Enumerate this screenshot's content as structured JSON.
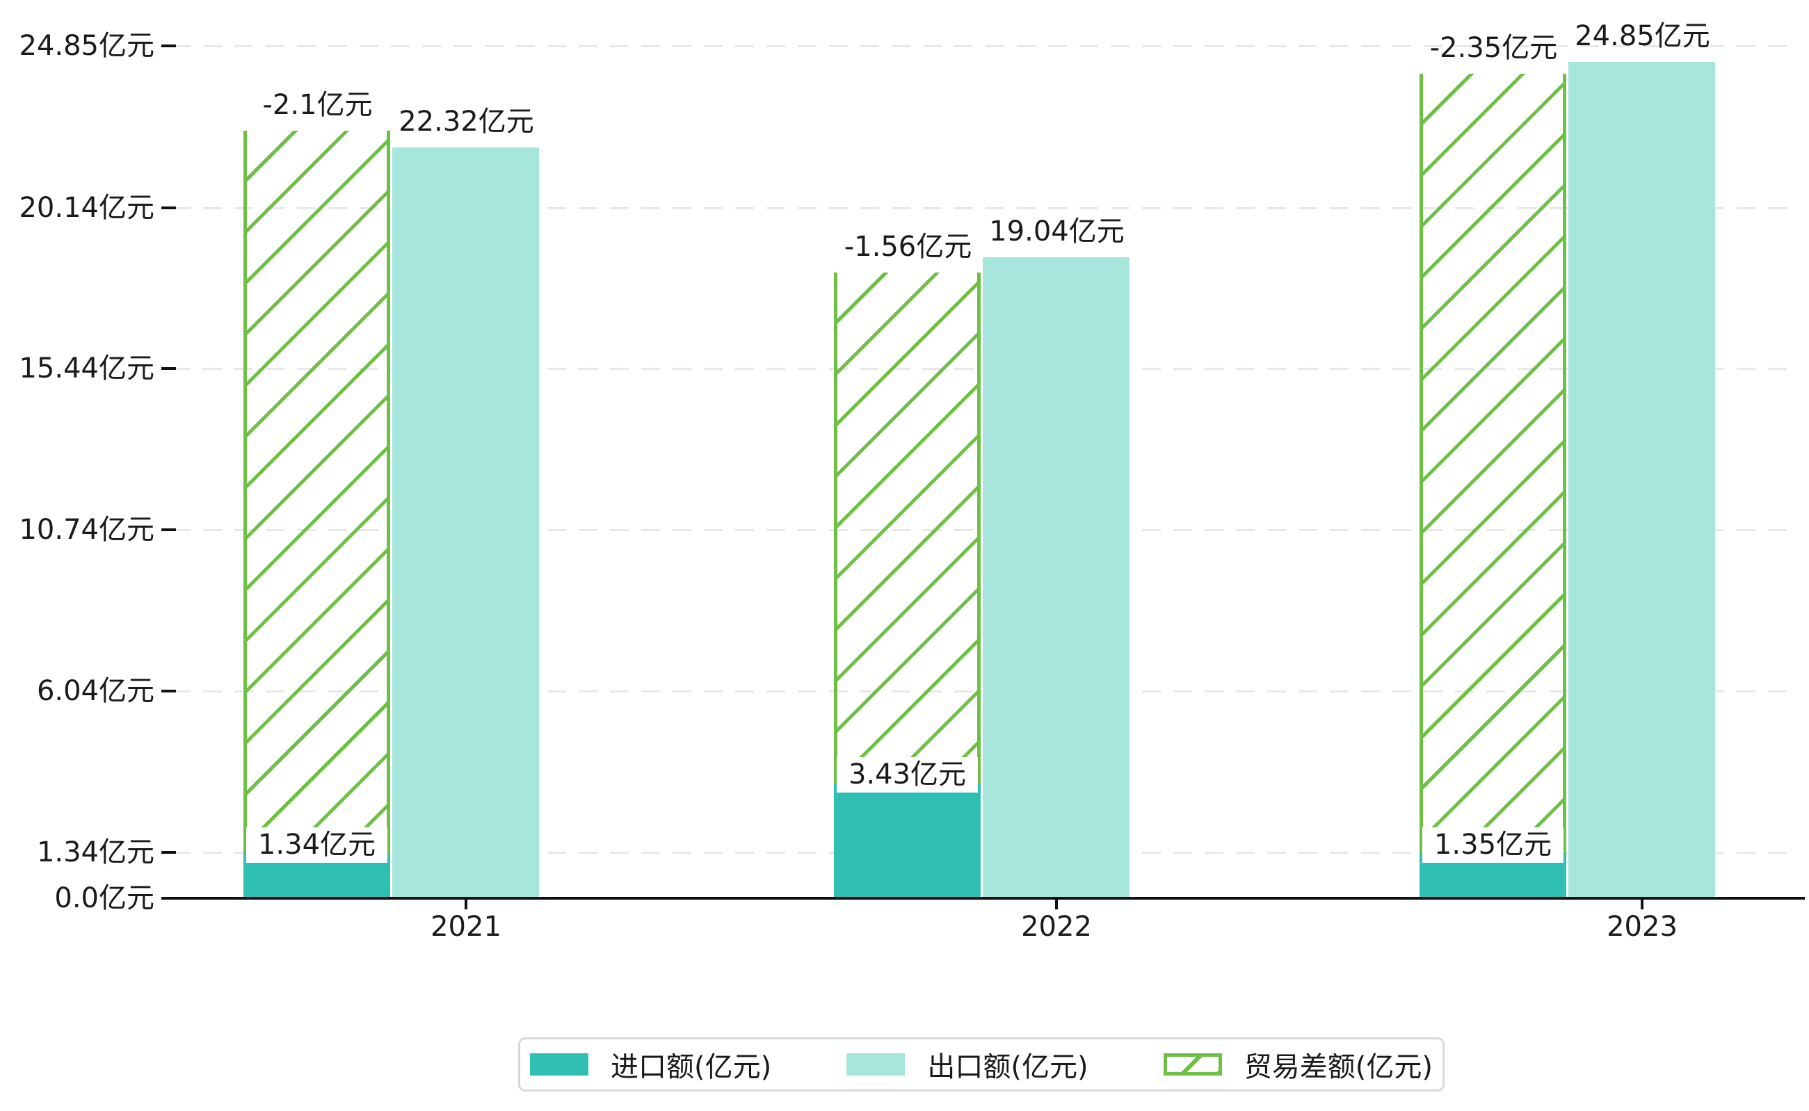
{
  "chart_data": {
    "type": "bar",
    "categories": [
      "2021",
      "2022",
      "2023"
    ],
    "unit": "亿元",
    "series": [
      {
        "name": "进口额(亿元)",
        "role": "import",
        "color": "#30BFB3",
        "values": [
          1.34,
          3.43,
          1.35
        ],
        "data_labels": [
          "1.34亿元",
          "3.43亿元",
          "1.35亿元"
        ]
      },
      {
        "name": "出口额(亿元)",
        "role": "export",
        "color": "#A7E6DD",
        "values": [
          22.32,
          19.04,
          24.85
        ],
        "data_labels": [
          "22.32亿元",
          "19.04亿元",
          "24.85亿元"
        ]
      },
      {
        "name": "贸易差额(亿元)",
        "role": "trade-balance",
        "color": "#6DC044",
        "pattern": "diagonal-hatch",
        "values": [
          -2.1,
          -1.56,
          -2.35
        ],
        "data_labels": [
          "-2.1亿元",
          "-1.56亿元",
          "-2.35亿元"
        ],
        "bar_bottom_values": [
          1.34,
          3.43,
          1.35
        ],
        "bar_top_values": [
          22.8,
          18.6,
          24.5
        ]
      }
    ],
    "yticks": [
      {
        "value": 0,
        "label": "0.0亿元"
      },
      {
        "value": 1.34,
        "label": "1.34亿元"
      },
      {
        "value": 6.04,
        "label": "6.04亿元"
      },
      {
        "value": 10.74,
        "label": "10.74亿元"
      },
      {
        "value": 15.44,
        "label": "15.44亿元"
      },
      {
        "value": 20.14,
        "label": "20.14亿元"
      },
      {
        "value": 24.85,
        "label": "24.85亿元"
      }
    ],
    "ylim": [
      0,
      25.4
    ],
    "grid": "horizontal-dashed",
    "legend_position": "bottom-center",
    "background": "#ffffff"
  }
}
